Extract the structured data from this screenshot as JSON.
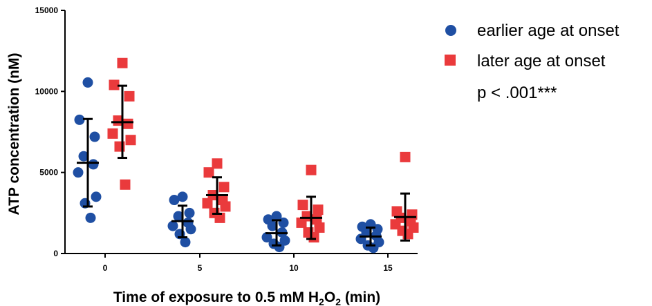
{
  "chart_data": {
    "type": "scatter",
    "subtype": "dot-plot-with-mean-and-sd",
    "xlabel_main": "Time of exposure to 0.5 mM H",
    "xlabel_sub1": "2",
    "xlabel_mid": "O",
    "xlabel_sub2": "2",
    "xlabel_tail": " (min)",
    "ylabel": "ATP concentration (nM)",
    "ylim": [
      0,
      15000
    ],
    "yticks": [
      0,
      5000,
      10000,
      15000
    ],
    "ytick_labels": [
      "0",
      "5000",
      "10000",
      "15000"
    ],
    "categories": [
      "0",
      "5",
      "10",
      "15"
    ],
    "legend_position": "top-right",
    "annotation": "p < .001***",
    "series": [
      {
        "name": "earlier age at onset",
        "marker": "circle",
        "color": "#1f4fa3",
        "groups": [
          {
            "category": "0",
            "values": [
              10550,
              8250,
              7200,
              6000,
              5500,
              5000,
              3500,
              3100,
              2200
            ],
            "mean": 5600,
            "sd_low": 2900,
            "sd_high": 8300
          },
          {
            "category": "5",
            "values": [
              3500,
              3300,
              2500,
              2300,
              1900,
              1700,
              1500,
              1200,
              700
            ],
            "mean": 2000,
            "sd_low": 1000,
            "sd_high": 2950
          },
          {
            "category": "10",
            "values": [
              2300,
              2100,
              1900,
              1700,
              1300,
              1000,
              800,
              600,
              400
            ],
            "mean": 1250,
            "sd_low": 500,
            "sd_high": 2050
          },
          {
            "category": "15",
            "values": [
              1800,
              1650,
              1500,
              1300,
              1100,
              900,
              700,
              500,
              350
            ],
            "mean": 1050,
            "sd_low": 500,
            "sd_high": 1600
          }
        ]
      },
      {
        "name": "later age at onset",
        "marker": "square",
        "color": "#ea3a3c",
        "groups": [
          {
            "category": "0",
            "values": [
              11750,
              10400,
              9700,
              8200,
              8000,
              7400,
              7000,
              6600,
              4250
            ],
            "mean": 8100,
            "sd_low": 5900,
            "sd_high": 10350
          },
          {
            "category": "5",
            "values": [
              5550,
              5000,
              4100,
              3600,
              3300,
              3100,
              2900,
              2500,
              2200
            ],
            "mean": 3600,
            "sd_low": 2450,
            "sd_high": 4700
          },
          {
            "category": "10",
            "values": [
              5150,
              3000,
              2700,
              2300,
              2100,
              1900,
              1600,
              1300,
              1000
            ],
            "mean": 2200,
            "sd_low": 900,
            "sd_high": 3500
          },
          {
            "category": "15",
            "values": [
              5950,
              2600,
              2400,
              2200,
              2000,
              1800,
              1600,
              1400,
              1200
            ],
            "mean": 2250,
            "sd_low": 800,
            "sd_high": 3700
          }
        ]
      }
    ]
  }
}
